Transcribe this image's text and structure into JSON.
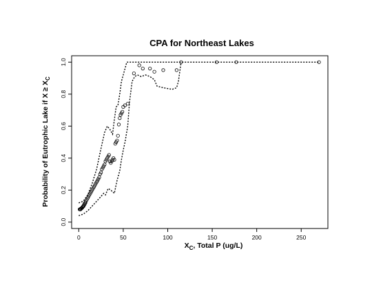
{
  "chart_data": {
    "type": "scatter",
    "title": "CPA for Northeast Lakes",
    "xlabel": {
      "main": "X",
      "sub": "C",
      "rest": ", Total P (ug/L)"
    },
    "ylabel": {
      "main": "Probability of  Eutrophic Lake if X ≥ X",
      "sub": "C"
    },
    "xlim": [
      -8,
      280
    ],
    "ylim": [
      -0.04,
      1.04
    ],
    "xticks": [
      0,
      50,
      100,
      150,
      200,
      250
    ],
    "yticks": [
      0.0,
      0.2,
      0.4,
      0.6,
      0.8,
      1.0
    ],
    "xtick_labels": [
      "0",
      "50",
      "100",
      "150",
      "200",
      "250"
    ],
    "ytick_labels": [
      "0.0",
      "0.2",
      "0.4",
      "0.6",
      "0.8",
      "1.0"
    ],
    "points": [
      [
        1,
        0.08
      ],
      [
        1.5,
        0.08
      ],
      [
        2,
        0.08
      ],
      [
        2.5,
        0.085
      ],
      [
        3,
        0.085
      ],
      [
        3.5,
        0.09
      ],
      [
        4,
        0.09
      ],
      [
        4.5,
        0.095
      ],
      [
        5,
        0.1
      ],
      [
        5.5,
        0.1
      ],
      [
        6,
        0.11
      ],
      [
        6.5,
        0.11
      ],
      [
        7,
        0.12
      ],
      [
        7.5,
        0.12
      ],
      [
        8,
        0.13
      ],
      [
        9,
        0.14
      ],
      [
        10,
        0.15
      ],
      [
        11,
        0.16
      ],
      [
        12,
        0.17
      ],
      [
        13,
        0.18
      ],
      [
        14,
        0.19
      ],
      [
        15,
        0.2
      ],
      [
        16,
        0.21
      ],
      [
        17,
        0.22
      ],
      [
        18,
        0.23
      ],
      [
        19,
        0.24
      ],
      [
        20,
        0.25
      ],
      [
        21,
        0.26
      ],
      [
        22,
        0.27
      ],
      [
        23,
        0.28
      ],
      [
        24,
        0.3
      ],
      [
        25,
        0.31
      ],
      [
        26,
        0.33
      ],
      [
        27,
        0.34
      ],
      [
        28,
        0.35
      ],
      [
        29,
        0.36
      ],
      [
        30,
        0.38
      ],
      [
        31,
        0.39
      ],
      [
        32,
        0.4
      ],
      [
        33,
        0.41
      ],
      [
        34,
        0.42
      ],
      [
        35,
        0.38
      ],
      [
        36,
        0.37
      ],
      [
        37,
        0.38
      ],
      [
        38,
        0.39
      ],
      [
        39,
        0.4
      ],
      [
        40,
        0.39
      ],
      [
        41,
        0.49
      ],
      [
        42,
        0.5
      ],
      [
        43,
        0.51
      ],
      [
        44,
        0.54
      ],
      [
        45,
        0.61
      ],
      [
        46,
        0.65
      ],
      [
        47,
        0.67
      ],
      [
        48,
        0.68
      ],
      [
        49,
        0.69
      ],
      [
        50,
        0.72
      ],
      [
        52,
        0.73
      ],
      [
        55,
        0.74
      ],
      [
        62,
        0.93
      ],
      [
        68,
        0.98
      ],
      [
        72,
        0.96
      ],
      [
        80,
        0.96
      ],
      [
        85,
        0.94
      ],
      [
        95,
        0.95
      ],
      [
        110,
        0.95
      ],
      [
        115,
        1.0
      ],
      [
        155,
        1.0
      ],
      [
        177,
        1.0
      ],
      [
        270,
        1.0
      ]
    ],
    "upper_band": [
      [
        0,
        0.12
      ],
      [
        5,
        0.13
      ],
      [
        10,
        0.17
      ],
      [
        15,
        0.24
      ],
      [
        20,
        0.33
      ],
      [
        25,
        0.46
      ],
      [
        29,
        0.56
      ],
      [
        32,
        0.6
      ],
      [
        35,
        0.58
      ],
      [
        38,
        0.55
      ],
      [
        40,
        0.64
      ],
      [
        42,
        0.72
      ],
      [
        44,
        0.73
      ],
      [
        46,
        0.8
      ],
      [
        48,
        0.88
      ],
      [
        50,
        0.92
      ],
      [
        52,
        0.96
      ],
      [
        54,
        1.0
      ],
      [
        270,
        1.0
      ]
    ],
    "lower_band": [
      [
        0,
        0.04
      ],
      [
        5,
        0.05
      ],
      [
        10,
        0.07
      ],
      [
        15,
        0.1
      ],
      [
        20,
        0.13
      ],
      [
        25,
        0.16
      ],
      [
        28,
        0.18
      ],
      [
        30,
        0.17
      ],
      [
        33,
        0.21
      ],
      [
        36,
        0.2
      ],
      [
        38,
        0.19
      ],
      [
        40,
        0.18
      ],
      [
        43,
        0.26
      ],
      [
        46,
        0.32
      ],
      [
        48,
        0.39
      ],
      [
        50,
        0.45
      ],
      [
        52,
        0.5
      ],
      [
        55,
        0.6
      ],
      [
        57,
        0.75
      ],
      [
        60,
        0.88
      ],
      [
        63,
        0.91
      ],
      [
        66,
        0.92
      ],
      [
        70,
        0.91
      ],
      [
        75,
        0.92
      ],
      [
        80,
        0.91
      ],
      [
        85,
        0.89
      ],
      [
        88,
        0.85
      ],
      [
        95,
        0.84
      ],
      [
        105,
        0.83
      ],
      [
        110,
        0.84
      ],
      [
        112,
        0.88
      ],
      [
        115,
        1.0
      ]
    ]
  }
}
